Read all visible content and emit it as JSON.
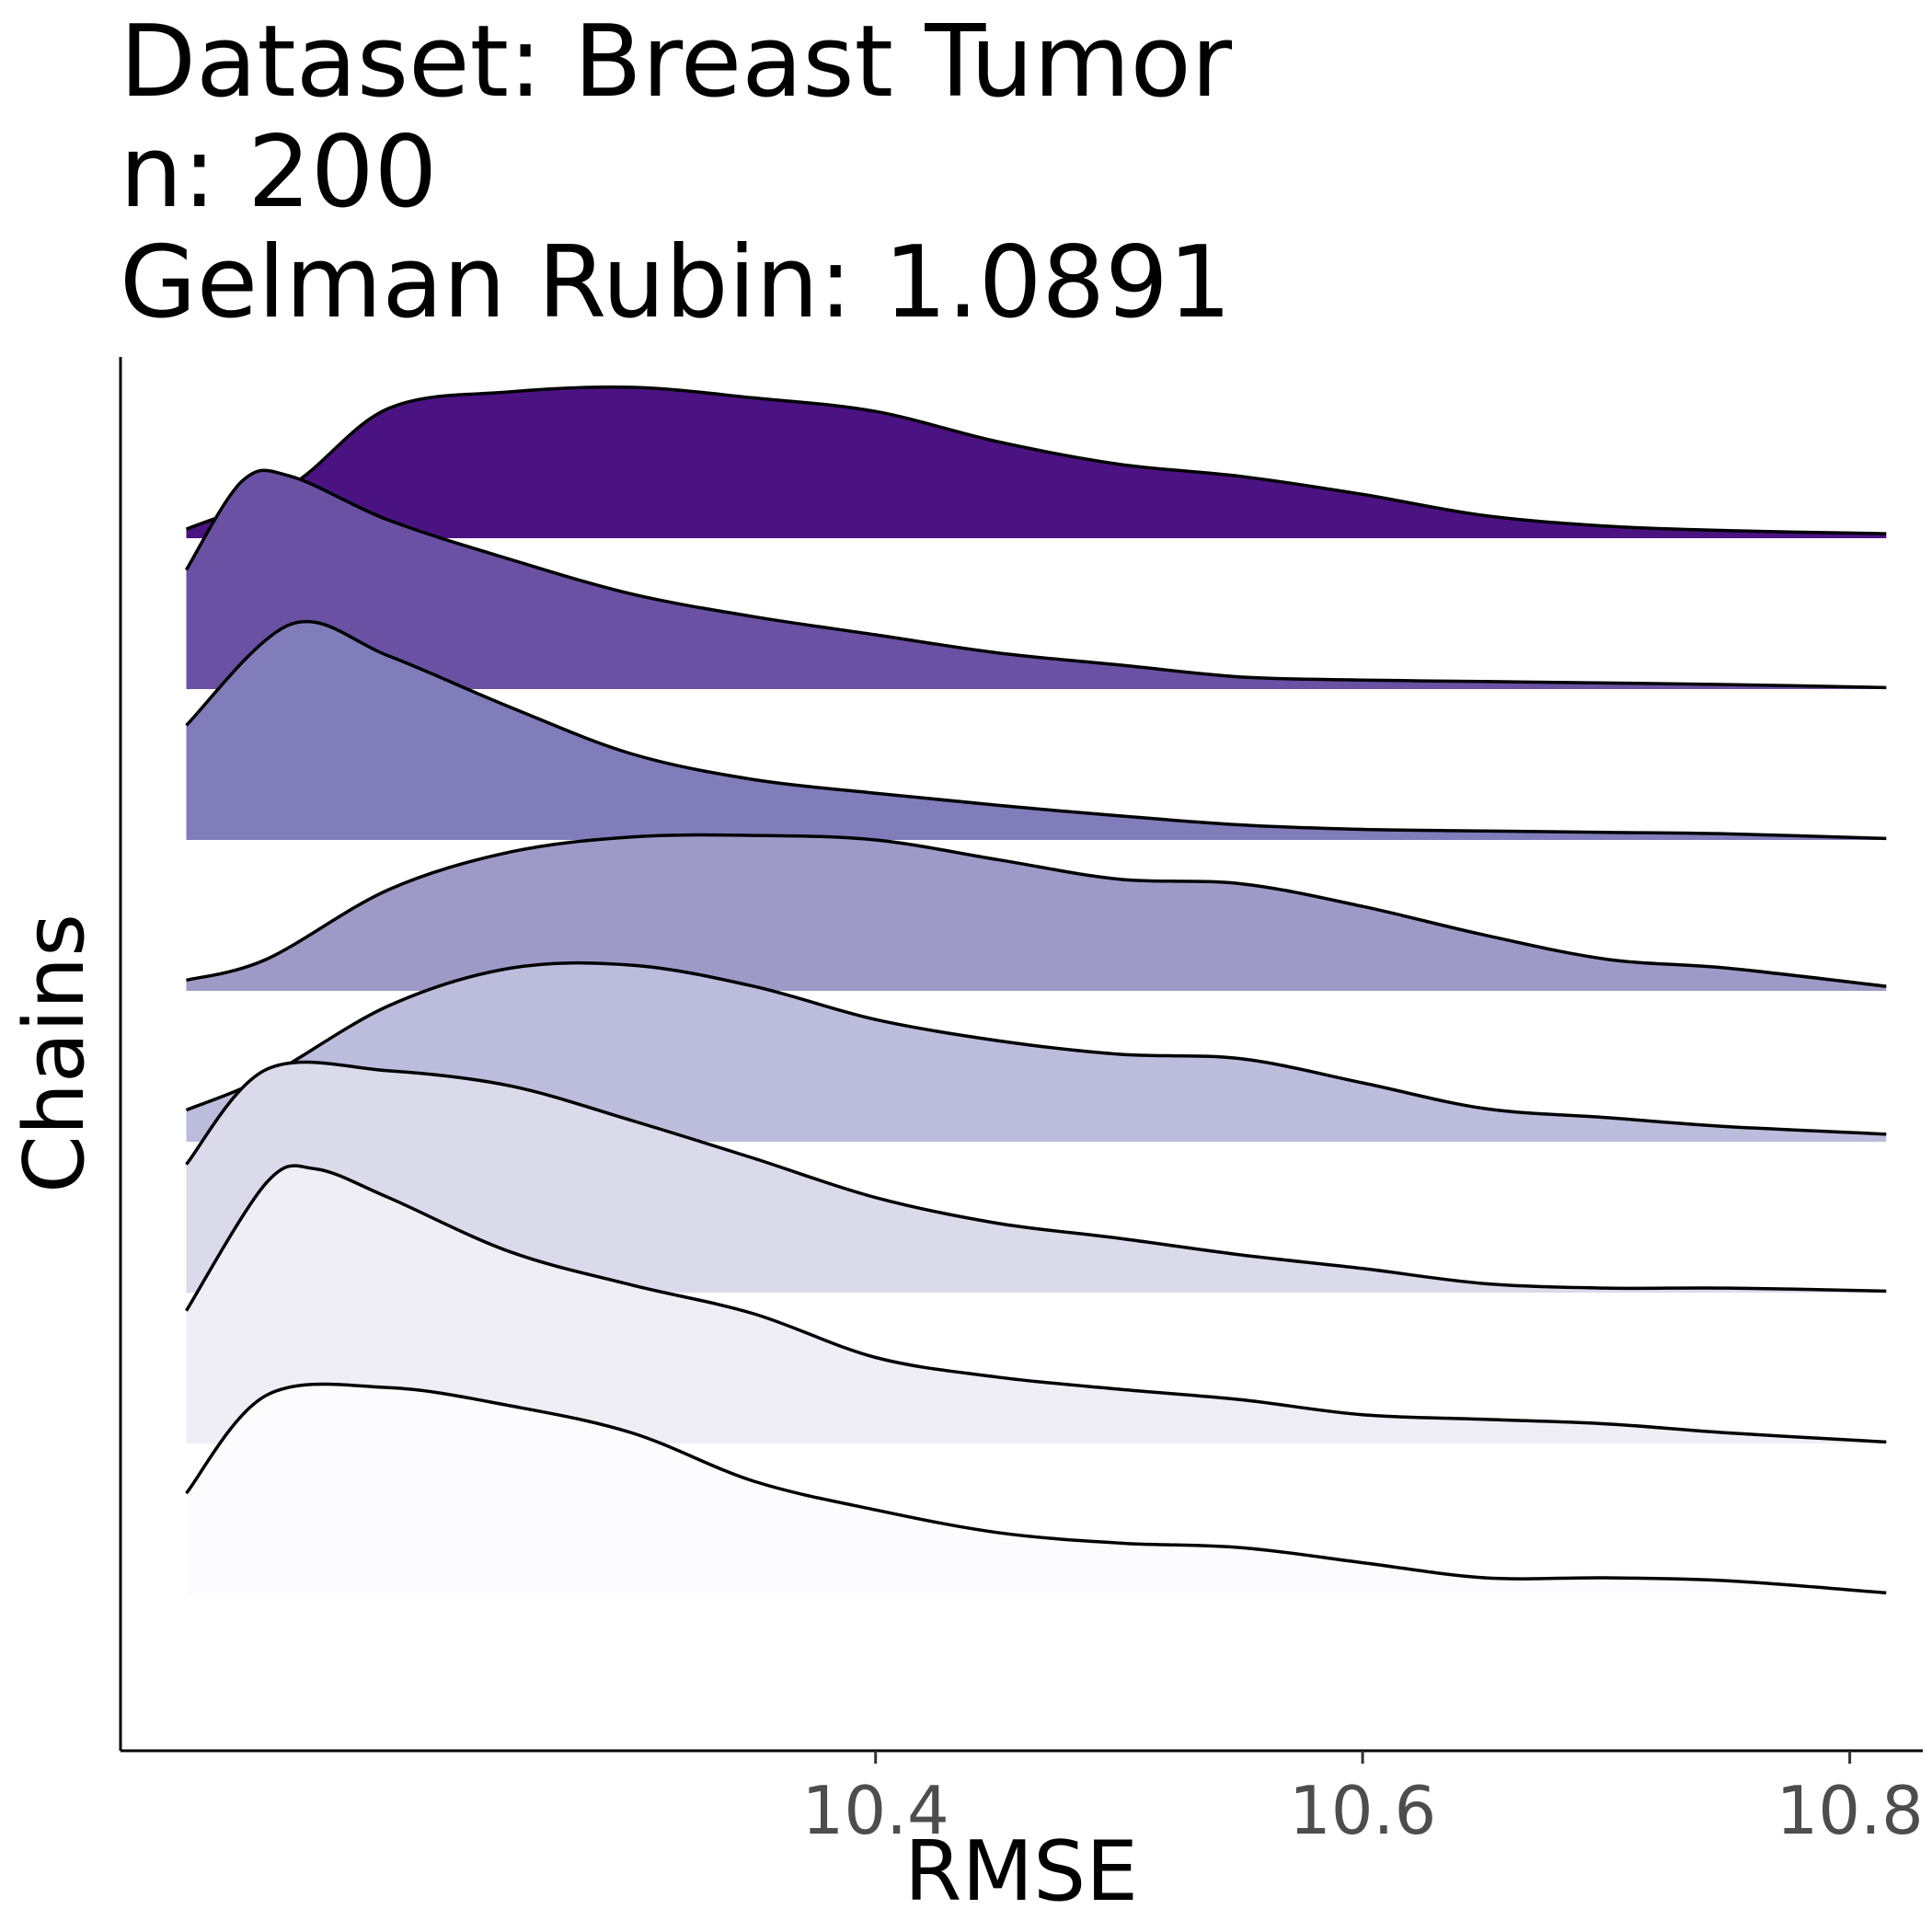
{
  "chart_data": {
    "type": "ridgeline",
    "title_lines": [
      "Dataset: Breast Tumor",
      "n: 200",
      "Gelman Rubin: 1.0891"
    ],
    "xlabel": "RMSE",
    "ylabel": "Chains",
    "xlim": [
      10.09,
      10.83
    ],
    "x_ticks": [
      10.4,
      10.6,
      10.8
    ],
    "x_tick_labels": [
      "10.4",
      "10.6",
      "10.8"
    ],
    "x_range": [
      10.117,
      10.815
    ],
    "grid": false,
    "legend": "none",
    "series": [
      {
        "fill": "#4b1382",
        "x": [
          10.117,
          10.16,
          10.2,
          10.25,
          10.3,
          10.35,
          10.4,
          10.45,
          10.5,
          10.55,
          10.6,
          10.65,
          10.7,
          10.75,
          10.815
        ],
        "density": [
          0.06,
          0.35,
          0.86,
          0.97,
          1.0,
          0.93,
          0.84,
          0.64,
          0.49,
          0.41,
          0.29,
          0.15,
          0.08,
          0.05,
          0.03
        ]
      },
      {
        "fill": "#6a51a3",
        "x": [
          10.117,
          10.14,
          10.16,
          10.2,
          10.25,
          10.3,
          10.35,
          10.4,
          10.45,
          10.5,
          10.55,
          10.6,
          10.65,
          10.7,
          10.75,
          10.815
        ],
        "density": [
          0.79,
          1.38,
          1.41,
          1.12,
          0.86,
          0.63,
          0.48,
          0.36,
          0.24,
          0.16,
          0.08,
          0.06,
          0.05,
          0.04,
          0.03,
          0.01
        ]
      },
      {
        "fill": "#807dba",
        "x": [
          10.117,
          10.16,
          10.2,
          10.25,
          10.3,
          10.35,
          10.4,
          10.45,
          10.5,
          10.55,
          10.6,
          10.65,
          10.7,
          10.75,
          10.815
        ],
        "density": [
          0.76,
          1.43,
          1.22,
          0.88,
          0.57,
          0.4,
          0.31,
          0.23,
          0.16,
          0.1,
          0.07,
          0.06,
          0.05,
          0.04,
          0.01
        ]
      },
      {
        "fill": "#9e9ac8",
        "x": [
          10.117,
          10.15,
          10.2,
          10.25,
          10.3,
          10.35,
          10.4,
          10.45,
          10.5,
          10.55,
          10.6,
          10.65,
          10.7,
          10.75,
          10.815
        ],
        "density": [
          0.07,
          0.21,
          0.67,
          0.92,
          1.02,
          1.03,
          1.0,
          0.87,
          0.74,
          0.71,
          0.56,
          0.37,
          0.21,
          0.15,
          0.03
        ]
      },
      {
        "fill": "#bcbddc",
        "x": [
          10.117,
          10.15,
          10.2,
          10.25,
          10.3,
          10.35,
          10.4,
          10.45,
          10.5,
          10.55,
          10.6,
          10.65,
          10.7,
          10.75,
          10.815
        ],
        "density": [
          0.21,
          0.43,
          0.9,
          1.15,
          1.17,
          1.03,
          0.81,
          0.67,
          0.58,
          0.55,
          0.39,
          0.22,
          0.16,
          0.1,
          0.05
        ]
      },
      {
        "fill": "#dadaeb",
        "x": [
          10.117,
          10.15,
          10.2,
          10.25,
          10.3,
          10.35,
          10.4,
          10.45,
          10.5,
          10.55,
          10.6,
          10.65,
          10.7,
          10.75,
          10.815
        ],
        "density": [
          0.85,
          1.48,
          1.47,
          1.37,
          1.14,
          0.89,
          0.63,
          0.46,
          0.36,
          0.25,
          0.16,
          0.06,
          0.03,
          0.03,
          0.01
        ]
      },
      {
        "fill": "#efedf5",
        "x": [
          10.117,
          10.15,
          10.17,
          10.2,
          10.25,
          10.3,
          10.35,
          10.4,
          10.45,
          10.5,
          10.55,
          10.6,
          10.65,
          10.7,
          10.75,
          10.815
        ],
        "density": [
          0.88,
          1.73,
          1.82,
          1.63,
          1.27,
          1.05,
          0.86,
          0.57,
          0.44,
          0.36,
          0.29,
          0.19,
          0.16,
          0.13,
          0.07,
          0.01
        ]
      },
      {
        "fill": "#fcfbfd",
        "x": [
          10.117,
          10.15,
          10.2,
          10.25,
          10.3,
          10.35,
          10.4,
          10.45,
          10.5,
          10.55,
          10.6,
          10.65,
          10.7,
          10.75,
          10.815
        ],
        "density": [
          0.67,
          1.32,
          1.37,
          1.25,
          1.07,
          0.75,
          0.56,
          0.41,
          0.34,
          0.31,
          0.21,
          0.11,
          0.11,
          0.09,
          0.01
        ]
      }
    ]
  }
}
